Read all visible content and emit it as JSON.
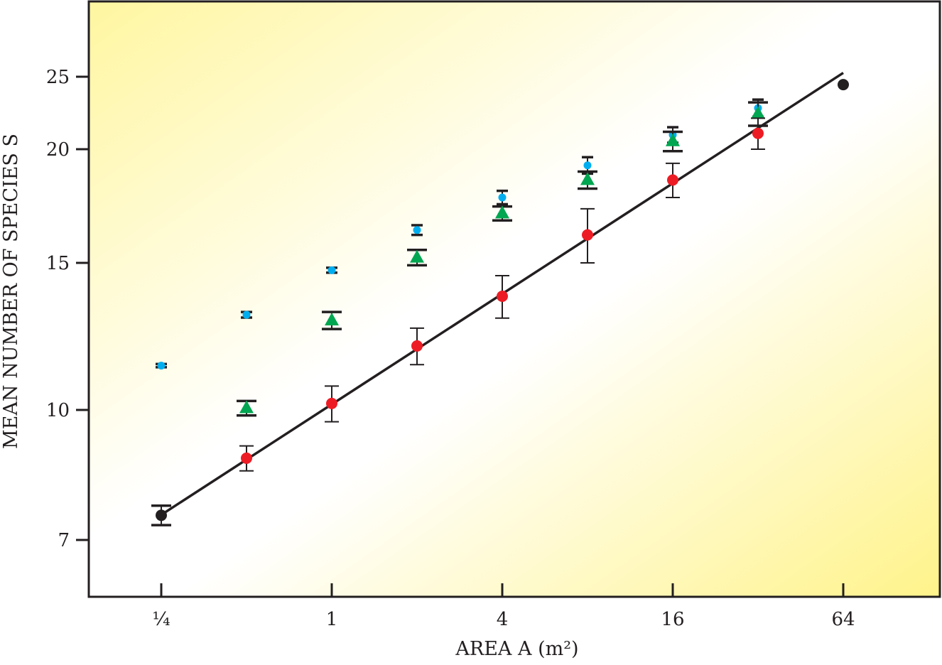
{
  "chart_data": {
    "type": "scatter",
    "title": "",
    "xlabel": "AREA A (m²)",
    "ylabel": "MEAN NUMBER OF SPECIES S",
    "xscale": "log",
    "yscale": "log",
    "xlim": [
      0.125,
      128
    ],
    "ylim": [
      6,
      30
    ],
    "x_ticks": [
      0.25,
      1,
      4,
      16,
      64
    ],
    "x_tick_labels": [
      "¼",
      "1",
      "4",
      "16",
      "64"
    ],
    "y_ticks": [
      7,
      10,
      15,
      20,
      25
    ],
    "y_tick_labels": [
      "7",
      "10",
      "15",
      "20",
      "25"
    ],
    "grid": false,
    "series": [
      {
        "name": "blue circles",
        "marker": "circle-small",
        "color": "#00aeef",
        "x": [
          0.25,
          0.5,
          1,
          2,
          4,
          8,
          16,
          32
        ],
        "y": [
          11.3,
          13.0,
          14.7,
          16.3,
          17.7,
          19.2,
          20.9,
          22.7
        ],
        "err": [
          0.05,
          0.1,
          0.1,
          0.2,
          0.3,
          0.4,
          0.5,
          0.6
        ]
      },
      {
        "name": "green triangles",
        "marker": "triangle",
        "color": "#00a651",
        "x": [
          0.5,
          1,
          2,
          4,
          8,
          16,
          32
        ],
        "y": [
          10.05,
          12.8,
          15.2,
          17.0,
          18.5,
          20.5,
          22.3
        ],
        "err": [
          0.2,
          0.3,
          0.3,
          0.3,
          0.4,
          0.6,
          0.8
        ]
      },
      {
        "name": "red circles",
        "marker": "circle",
        "color": "#ed1c24",
        "x": [
          0.5,
          1,
          2,
          4,
          8,
          16,
          32
        ],
        "y": [
          8.76,
          10.18,
          11.93,
          13.68,
          16.1,
          18.5,
          21.0
        ],
        "err": [
          0.3,
          0.5,
          0.6,
          0.8,
          1.1,
          0.8,
          1.0
        ]
      },
      {
        "name": "black endpoints",
        "marker": "circle",
        "color": "#231f20",
        "x": [
          0.25,
          64
        ],
        "y": [
          7.49,
          24.4
        ],
        "err": [
          0.2,
          0.0
        ]
      }
    ],
    "fit_line": {
      "x": [
        0.25,
        64
      ],
      "y": [
        7.5,
        25.3
      ],
      "color": "#231f20"
    }
  }
}
